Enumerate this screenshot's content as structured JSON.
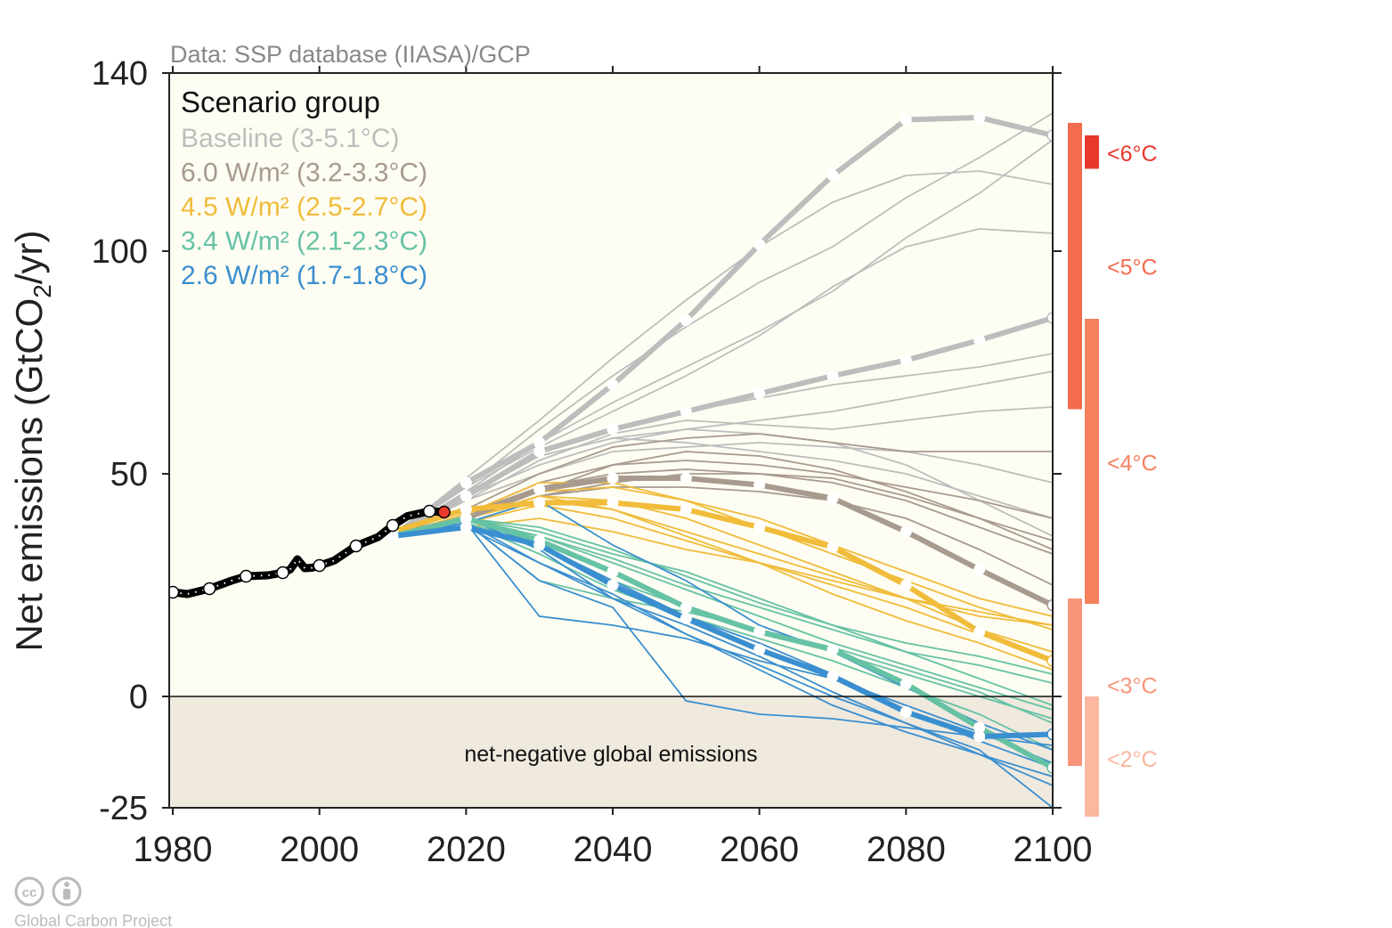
{
  "chart_data": {
    "type": "line",
    "source_note": "Data: SSP database (IIASA)/GCP",
    "ylabel_main": "Net emissions (GtCO",
    "ylabel_sub": "2",
    "ylabel_end": "/yr)",
    "xlim": [
      1980,
      2100
    ],
    "ylim": [
      -25,
      140
    ],
    "xticks": [
      1980,
      2000,
      2020,
      2040,
      2060,
      2080,
      2100
    ],
    "yticks": [
      140,
      100,
      50,
      0,
      -25
    ],
    "negative_region_label": "net-negative global emissions",
    "legend": {
      "title": "Scenario group",
      "entries": [
        {
          "label": "Baseline (3-5.1°C)",
          "color": "#bdbdbd"
        },
        {
          "label": "6.0 W/m² (3.2-3.3°C)",
          "color": "#a89a8e"
        },
        {
          "label": "4.5 W/m² (2.5-2.7°C)",
          "color": "#f0bc3a"
        },
        {
          "label": "3.4 W/m² (2.1-2.3°C)",
          "color": "#66c2a5"
        },
        {
          "label": "2.6 W/m² (1.7-1.8°C)",
          "color": "#3a8fd0"
        }
      ]
    },
    "historical": {
      "color": "#000000",
      "x": [
        1980,
        1982,
        1985,
        1988,
        1990,
        1993,
        1995,
        1996,
        1997,
        1998,
        1999,
        2000,
        2002,
        2005,
        2008,
        2010,
        2012,
        2015,
        2017
      ],
      "y": [
        23.4,
        23.0,
        24.2,
        26.0,
        27.0,
        27.2,
        27.8,
        28.5,
        30.8,
        28.8,
        28.9,
        29.4,
        30.5,
        33.8,
        35.8,
        38.4,
        40.5,
        41.6,
        41.4
      ],
      "markers_x": [
        1980,
        1985,
        1990,
        1995,
        2000,
        2005,
        2010,
        2015
      ],
      "latest_year": 2017,
      "latest_color": "#e8382b"
    },
    "scenario_years": [
      2010,
      2020,
      2030,
      2040,
      2050,
      2060,
      2070,
      2080,
      2090,
      2100
    ],
    "series": [
      {
        "name": "Baseline",
        "color": "#bdbdbd",
        "markers": [
          [
            36,
            48,
            57,
            70,
            84.5,
            101.5,
            117,
            129.5,
            130,
            126
          ],
          [
            36,
            45,
            55,
            60,
            64,
            68,
            72,
            75.5,
            80,
            85
          ]
        ],
        "lines": [
          [
            36,
            49,
            62,
            76,
            89,
            101,
            111,
            117,
            118,
            115
          ],
          [
            36,
            47,
            60,
            72,
            83,
            93,
            101,
            112,
            121,
            131
          ],
          [
            36,
            46,
            57,
            66,
            74,
            82,
            91,
            103,
            113,
            125
          ],
          [
            36,
            47,
            56,
            64,
            72,
            81,
            92,
            101,
            105,
            104
          ],
          [
            36,
            45,
            55,
            60,
            64,
            67,
            70,
            72,
            74,
            77
          ],
          [
            36,
            45,
            52,
            57,
            60,
            62,
            64,
            67,
            70,
            73
          ],
          [
            36,
            44,
            50,
            55,
            56,
            57,
            56,
            55,
            52,
            48
          ],
          [
            36,
            44,
            53,
            59,
            62,
            61,
            60,
            62,
            64,
            65
          ],
          [
            36,
            45,
            54,
            58,
            57,
            55,
            53,
            50,
            45,
            40
          ],
          [
            36,
            46,
            54,
            58,
            60,
            59,
            57,
            52,
            44,
            36
          ]
        ]
      },
      {
        "name": "6.0 W/m²",
        "color": "#a89a8e",
        "markers": [
          [
            36,
            40,
            46.5,
            49,
            49,
            47.5,
            44.5,
            37,
            28.5,
            20.5
          ]
        ],
        "lines": [
          [
            36,
            42,
            50,
            56,
            58,
            59,
            57,
            55,
            55,
            55
          ],
          [
            36,
            41,
            48,
            52,
            53,
            52,
            50,
            47,
            44,
            40
          ],
          [
            36,
            41,
            47,
            50,
            51,
            50,
            48,
            44,
            38,
            32
          ],
          [
            36,
            40,
            45,
            48,
            50,
            50,
            49,
            45,
            40,
            35
          ],
          [
            36,
            40,
            46,
            52,
            55,
            54,
            51,
            46,
            40,
            33
          ],
          [
            36,
            40,
            45,
            47,
            47,
            46,
            44,
            40,
            33,
            25
          ]
        ]
      },
      {
        "name": "4.5 W/m²",
        "color": "#f0bc3a",
        "markers": [
          [
            37,
            42,
            43.5,
            43.5,
            42,
            38,
            33.5,
            25,
            14.5,
            8
          ]
        ],
        "lines": [
          [
            36,
            41,
            46,
            47,
            44,
            40,
            34,
            28,
            22,
            18
          ],
          [
            36,
            41,
            48,
            48,
            44,
            38,
            32,
            26,
            20,
            15
          ],
          [
            36,
            40,
            45,
            44,
            40,
            34,
            28,
            22,
            15,
            10
          ],
          [
            36,
            40,
            44,
            42,
            37,
            32,
            27,
            22,
            18,
            16
          ],
          [
            36,
            39,
            43,
            40,
            35,
            30,
            25,
            20,
            14,
            8
          ],
          [
            36,
            40,
            45,
            42,
            36,
            30,
            23,
            17,
            12,
            6
          ],
          [
            36,
            38,
            40,
            37,
            33,
            30,
            26,
            22,
            19,
            16
          ]
        ]
      },
      {
        "name": "3.4 W/m²",
        "color": "#66c2a5",
        "markers": [
          [
            36,
            40,
            35,
            28,
            20,
            14.5,
            10.5,
            2.8,
            -7,
            -16
          ]
        ],
        "lines": [
          [
            36,
            40,
            38,
            33,
            27,
            21,
            16,
            12,
            9,
            5
          ],
          [
            36,
            40,
            36,
            30,
            24,
            18,
            12,
            7,
            2,
            -3
          ],
          [
            36,
            39,
            34,
            26,
            20,
            15,
            10,
            5,
            0,
            -5
          ],
          [
            36,
            40,
            37,
            32,
            28,
            22,
            16,
            10,
            4,
            -2
          ],
          [
            36,
            39,
            32,
            24,
            18,
            13,
            8,
            2,
            -4,
            -12
          ],
          [
            36,
            40,
            36,
            31,
            25,
            20,
            15,
            10,
            7,
            3
          ],
          [
            36,
            39,
            26,
            22,
            19,
            15,
            11,
            6,
            1,
            -6
          ]
        ]
      },
      {
        "name": "2.6 W/m²",
        "color": "#3a8fd0",
        "markers": [
          [
            36,
            38,
            34,
            25,
            17.5,
            10.5,
            4.5,
            -3.5,
            -9,
            -8.5
          ]
        ],
        "lines": [
          [
            36,
            39,
            30,
            22,
            14,
            6,
            -2,
            -8,
            -13,
            -18
          ],
          [
            36,
            39,
            18,
            16,
            13,
            8,
            4,
            -2,
            -8,
            -15
          ],
          [
            36,
            40,
            34,
            26,
            18,
            12,
            5,
            -3,
            -10,
            -16
          ],
          [
            36,
            39,
            26,
            20,
            -1,
            -4,
            -5,
            -7,
            -9,
            -11
          ],
          [
            36,
            40,
            33,
            22,
            16,
            9,
            1,
            -6,
            -13,
            -20
          ],
          [
            36,
            38,
            30,
            23,
            14,
            7,
            0,
            -6,
            -12,
            -25
          ],
          [
            36,
            39,
            44,
            34,
            26,
            16,
            10,
            2,
            -6,
            -12
          ]
        ]
      }
    ],
    "temperature_bars": [
      {
        "label": "<6°C",
        "range": [
          118.5,
          126
        ],
        "column": 2,
        "color": "#e8382b"
      },
      {
        "label": "<5°C",
        "range": [
          64.5,
          128.8
        ],
        "column": 1,
        "color": "#f36c4d"
      },
      {
        "label": "<4°C",
        "range": [
          20.8,
          84.8
        ],
        "column": 2,
        "color": "#f5805e"
      },
      {
        "label": "<3°C",
        "range": [
          -15.6,
          22
        ],
        "column": 1,
        "color": "#f8957a"
      },
      {
        "label": "<2°C",
        "range": [
          -27,
          0
        ],
        "column": 2,
        "color": "#fbb7a0"
      }
    ],
    "temperature_label_values": [
      122,
      96.5,
      52.5,
      2.5,
      -14
    ]
  },
  "footer": {
    "credit": "Global Carbon Project",
    "cc_icon": "cc-icon",
    "by_icon": "attribution-icon"
  }
}
